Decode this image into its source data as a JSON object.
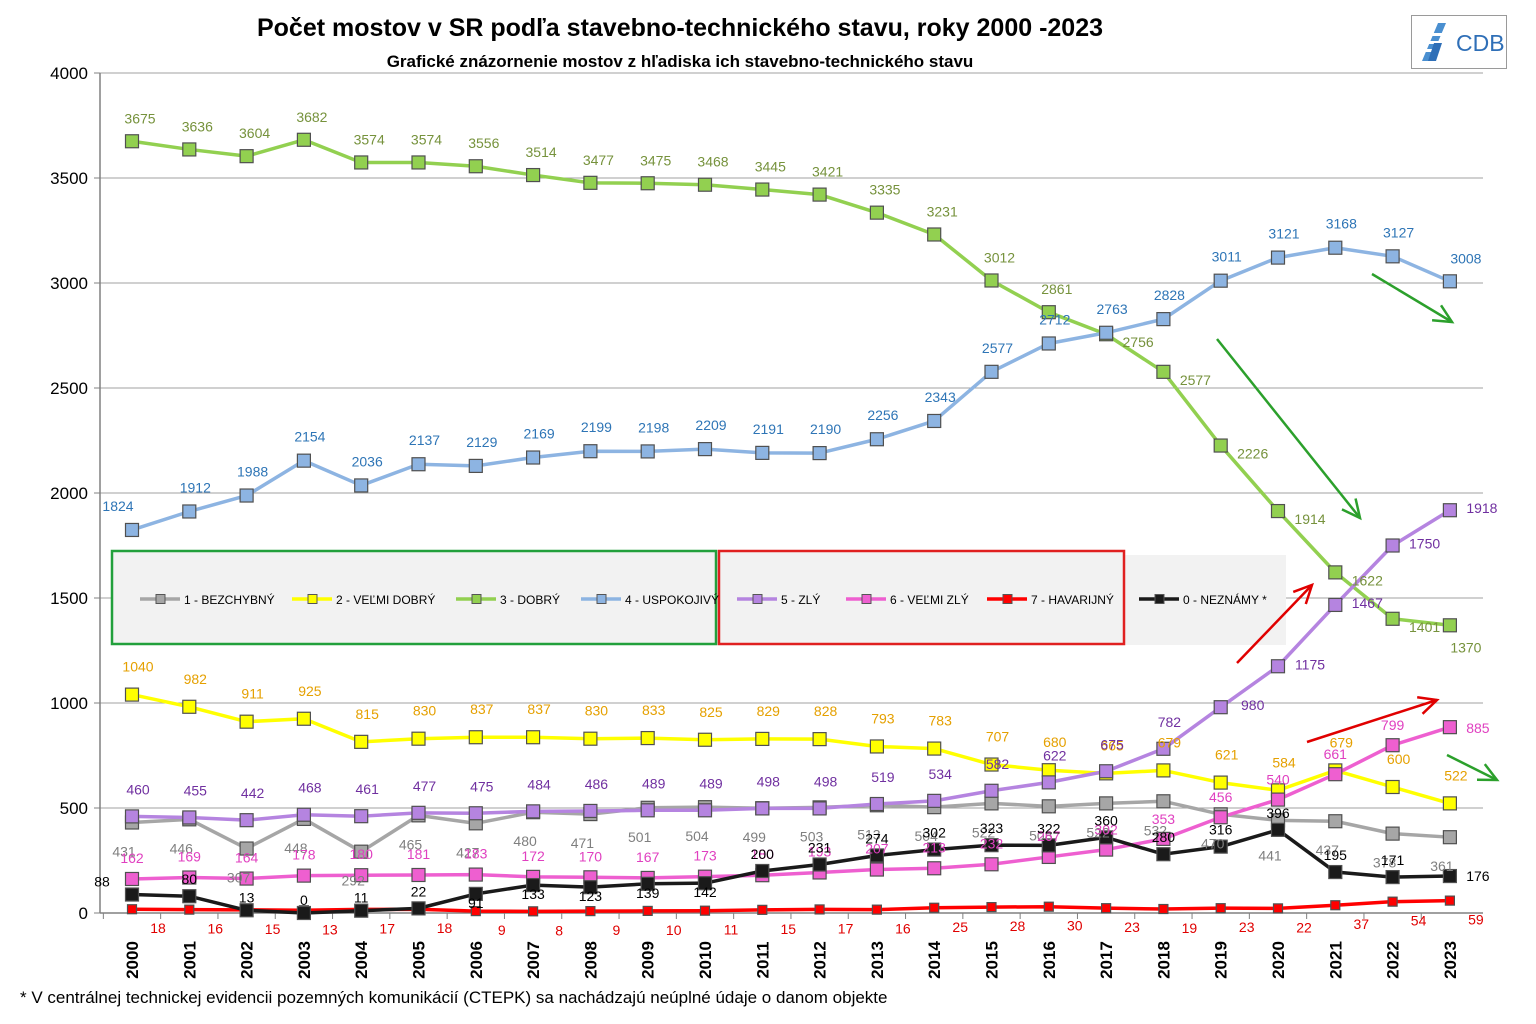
{
  "title": "Počet mostov v SR podľa stavebno-technického stavu, roky 2000 -2023",
  "subtitle": "Grafické znázornenie mostov z hľadiska ich stavebno-technického stavu",
  "logo": {
    "text": "CDB",
    "color": "#2f6fb7"
  },
  "footnote": "*   V centrálnej  technickej evidencii pozemných komunikácií (CTEPK) sa nachádzajú neúplné údaje o danom objekte",
  "chart_data": {
    "type": "line",
    "title": "Počet mostov v SR podľa stavebno-technického stavu, roky 2000 -2023",
    "subtitle": "Grafické znázornenie mostov z hľadiska ich stavebno-technického stavu",
    "x": [
      "2000",
      "2001",
      "2002",
      "2003",
      "2004",
      "2005",
      "2006",
      "2007",
      "2008",
      "2009",
      "2010",
      "2011",
      "2012",
      "2013",
      "2014",
      "2015",
      "2016",
      "2017",
      "2018",
      "2019",
      "2020",
      "2021",
      "2022",
      "2023"
    ],
    "ylim": [
      0,
      4000
    ],
    "yticks": [
      "0",
      "500",
      "1000",
      "1500",
      "2000",
      "2500",
      "3000",
      "3500",
      "4000"
    ],
    "grid": true,
    "legend_position": "middle-left",
    "series": [
      {
        "name": "1 - BEZCHYBNÝ",
        "color": "#a6a6a6",
        "label_color": "#7f7f7f",
        "values": [
          431,
          446,
          307,
          448,
          292,
          465,
          427,
          480,
          471,
          501,
          504,
          499,
          503,
          513,
          504,
          522,
          508,
          522,
          532,
          470,
          441,
          437,
          378,
          361
        ]
      },
      {
        "name": "2 - VEĽMI DOBRÝ",
        "color": "#ffff00",
        "label_color": "#e5a000",
        "values": [
          1040,
          982,
          911,
          925,
          815,
          830,
          837,
          837,
          830,
          833,
          825,
          829,
          828,
          793,
          783,
          707,
          680,
          665,
          679,
          621,
          584,
          679,
          600,
          522
        ]
      },
      {
        "name": "3 - DOBRÝ",
        "color": "#92d050",
        "label_color": "#76923c",
        "values": [
          3675,
          3636,
          3604,
          3682,
          3574,
          3574,
          3556,
          3514,
          3477,
          3475,
          3468,
          3445,
          3421,
          3335,
          3231,
          3012,
          2861,
          2756,
          2577,
          2226,
          1914,
          1622,
          1401,
          1370
        ]
      },
      {
        "name": "4 - USPOKOJIVÝ",
        "color": "#8db4e2",
        "label_color": "#2e75b6",
        "values": [
          1824,
          1912,
          1988,
          2154,
          2036,
          2137,
          2129,
          2169,
          2199,
          2198,
          2209,
          2191,
          2190,
          2256,
          2343,
          2577,
          2712,
          2763,
          2828,
          3011,
          3121,
          3168,
          3127,
          3008
        ]
      },
      {
        "name": "5 - ZLÝ",
        "color": "#b584e0",
        "label_color": "#7030a0",
        "values": [
          460,
          455,
          442,
          468,
          461,
          477,
          475,
          484,
          486,
          489,
          489,
          498,
          498,
          519,
          534,
          582,
          622,
          675,
          782,
          980,
          1175,
          1467,
          1750,
          1918
        ]
      },
      {
        "name": "6 - VEĽMI ZLÝ",
        "color": "#ee5fd0",
        "label_color": "#e040c0",
        "values": [
          162,
          169,
          164,
          178,
          180,
          181,
          183,
          172,
          170,
          167,
          173,
          180,
          193,
          207,
          213,
          232,
          267,
          302,
          353,
          456,
          540,
          661,
          799,
          885
        ]
      },
      {
        "name": "7 - HAVARIJNÝ",
        "color": "#ff0000",
        "label_color": "#e00000",
        "values": [
          18,
          16,
          15,
          13,
          17,
          18,
          9,
          8,
          9,
          10,
          11,
          15,
          17,
          16,
          25,
          28,
          30,
          23,
          19,
          23,
          22,
          37,
          54,
          59
        ]
      },
      {
        "name": "0 - NEZNÁMY  *",
        "color": "#1a1a1a",
        "label_color": "#000000",
        "values": [
          88,
          80,
          13,
          0,
          11,
          22,
          91,
          133,
          123,
          139,
          142,
          200,
          231,
          274,
          302,
          323,
          322,
          360,
          280,
          316,
          396,
          195,
          171,
          176
        ]
      }
    ],
    "arrows": [
      {
        "color": "#2ca02c",
        "meaning": "decrease"
      },
      {
        "color": "#2ca02c",
        "meaning": "decrease"
      },
      {
        "color": "#2ca02c",
        "meaning": "decrease"
      },
      {
        "color": "#e00000",
        "meaning": "increase"
      },
      {
        "color": "#e00000",
        "meaning": "increase"
      }
    ]
  }
}
